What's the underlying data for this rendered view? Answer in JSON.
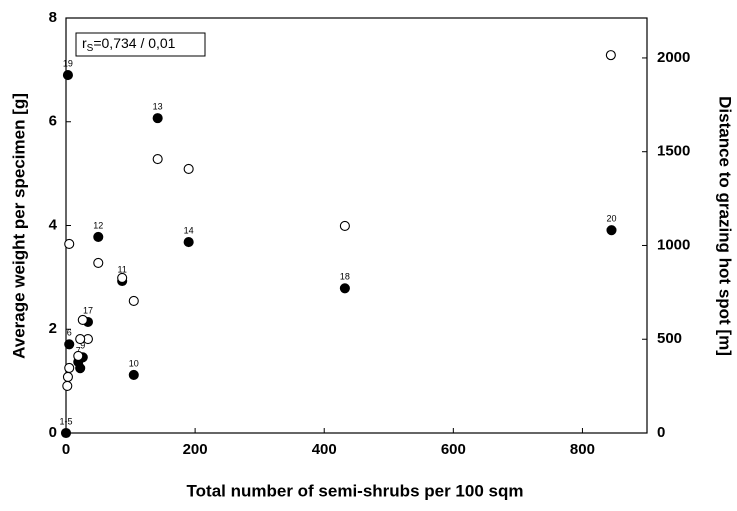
{
  "chart_data": {
    "type": "scatter",
    "xlabel": "Total number of semi-shrubs per 100 sqm",
    "ylabel": "Average weight per specimen [g]",
    "y2label": "Distance to grazing hot spot [m]",
    "annotation": {
      "symbol": "r",
      "subscript": "S",
      "text": "=0,734 / 0,01"
    },
    "xlim": [
      0,
      900
    ],
    "xticks": [
      0,
      200,
      400,
      600,
      800
    ],
    "ylim": [
      0,
      8
    ],
    "yticks": [
      0,
      2,
      4,
      6,
      8
    ],
    "y2lim": [
      0,
      2213
    ],
    "y2ticks": [
      0,
      500,
      1000,
      1500,
      2000
    ],
    "series": [
      {
        "color": "#000000",
        "filled": true,
        "x": [
          3,
          142,
          50,
          190,
          845,
          87,
          432,
          34,
          5,
          26,
          19,
          22,
          105,
          0
        ],
        "values": [
          6.9,
          6.07,
          3.78,
          3.68,
          3.91,
          2.93,
          2.79,
          2.14,
          1.71,
          1.46,
          1.37,
          1.25,
          1.12,
          0
        ],
        "labels": [
          "19",
          "13",
          "12",
          "14",
          "20",
          "11",
          "18",
          "17",
          "6",
          "9",
          "7",
          "8",
          "10",
          "1-5"
        ]
      },
      {
        "color": "#000000",
        "filled": false,
        "axis": "y2",
        "x": [
          844,
          142,
          190,
          432,
          5,
          50,
          87,
          105,
          26,
          34,
          22,
          19,
          5,
          3,
          2
        ],
        "values": [
          2015,
          1461,
          1408,
          1104,
          1008,
          907,
          827,
          704,
          603,
          501,
          501,
          411,
          347,
          299,
          251
        ]
      }
    ]
  }
}
